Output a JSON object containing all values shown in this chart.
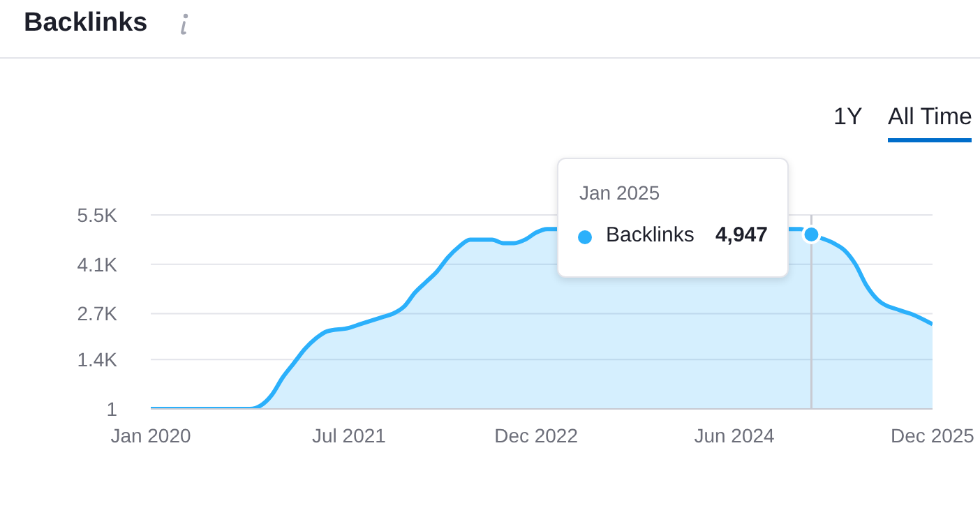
{
  "chart_data": {
    "type": "area",
    "title": "Backlinks",
    "x": [
      "2020-01",
      "2020-10",
      "2020-11",
      "2020-12",
      "2021-01",
      "2021-02",
      "2021-03",
      "2021-04",
      "2021-05",
      "2021-07",
      "2021-08",
      "2021-09",
      "2021-10",
      "2021-11",
      "2021-12",
      "2022-01",
      "2022-02",
      "2022-03",
      "2022-04",
      "2022-05",
      "2022-06",
      "2022-08",
      "2022-09",
      "2022-10",
      "2022-11",
      "2022-12",
      "2023-01",
      "2023-06",
      "2024-12",
      "2025-01",
      "2025-03",
      "2025-04",
      "2025-05",
      "2025-06",
      "2025-07",
      "2025-09",
      "2025-10",
      "2025-12"
    ],
    "series": [
      {
        "name": "Backlinks",
        "color": "#2bb0fb",
        "values": [
          1,
          1,
          100,
          400,
          900,
          1300,
          1700,
          2000,
          2200,
          2300,
          2400,
          2500,
          2600,
          2700,
          2900,
          3300,
          3600,
          3900,
          4300,
          4600,
          4800,
          4800,
          4700,
          4700,
          4800,
          5000,
          5100,
          null,
          5100,
          4947,
          4700,
          4500,
          4100,
          3500,
          3100,
          2800,
          2700,
          2400
        ]
      }
    ],
    "xlim": [
      "2020-01",
      "2025-12"
    ],
    "xticks": [
      {
        "value": "2020-01",
        "label": "Jan 2020"
      },
      {
        "value": "2021-07",
        "label": "Jul 2021"
      },
      {
        "value": "2022-12",
        "label": "Dec 2022"
      },
      {
        "value": "2024-06",
        "label": "Jun 2024"
      },
      {
        "value": "2025-12",
        "label": "Dec 2025"
      }
    ],
    "ylim": [
      1,
      5500
    ],
    "yticks": [
      1,
      {
        "value": 1400,
        "label": "1.4K"
      },
      {
        "value": 2700,
        "label": "2.7K"
      },
      {
        "value": 4100,
        "label": "4.1K"
      },
      {
        "value": 5500,
        "label": "5.5K"
      }
    ],
    "grid": "y",
    "ref_lines": [
      {
        "axis": "x",
        "value": "2025-01",
        "label": null,
        "color": "#c8cad2"
      }
    ],
    "annotations": [
      "1Y",
      "All Time",
      "Jan 2025",
      {
        "text": "4,947",
        "x": "2025-01",
        "y": 4947
      }
    ]
  }
}
